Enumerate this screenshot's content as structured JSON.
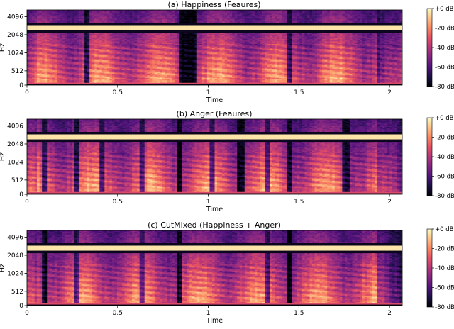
{
  "panels": [
    {
      "title": "(a) Happiness (Feaures)"
    },
    {
      "title": "(b) Anger (Feaures)"
    },
    {
      "title": "(c) CutMixed (Happiness + Anger)"
    }
  ],
  "colors": {
    "colormap": [
      "#000004",
      "#1c1044",
      "#4f127b",
      "#812581",
      "#b5367a",
      "#e55064",
      "#fb8761",
      "#fec287",
      "#fcfdbf"
    ],
    "background": "#ffffff"
  },
  "chart_data": [
    {
      "type": "heatmap",
      "title": "(a) Happiness (Feaures)",
      "xlabel": "Time",
      "ylabel": "Hz",
      "xlim": [
        0,
        2.07
      ],
      "xticks": [
        0,
        0.5,
        1,
        1.5,
        2
      ],
      "xtick_labels": [
        "0",
        "0.5",
        "1",
        "1.5",
        "2"
      ],
      "yticks": [
        0,
        512,
        1024,
        2048,
        4096
      ],
      "ytick_labels": [
        "0",
        "512",
        "1024",
        "2048",
        "4096"
      ],
      "yscale": "log-frequency",
      "colorbar": {
        "ticks": [
          0,
          -20,
          -40,
          -60,
          -80
        ],
        "labels": [
          "+0 dB",
          "-20 dB",
          "-40 dB",
          "-60 dB",
          "-80 dB"
        ],
        "range": [
          -80,
          0
        ]
      },
      "gap_columns": [
        0.33,
        0.86,
        0.89,
        0.93,
        1.45
      ],
      "harmonic_band_hz": 2860
    },
    {
      "type": "heatmap",
      "title": "(b) Anger (Feaures)",
      "xlabel": "Time",
      "ylabel": "Hz",
      "xlim": [
        0,
        2.07
      ],
      "xticks": [
        0,
        0.5,
        1,
        1.5,
        2
      ],
      "xtick_labels": [
        "0",
        "0.5",
        "1",
        "1.5",
        "2"
      ],
      "yticks": [
        0,
        512,
        1024,
        2048,
        4096
      ],
      "ytick_labels": [
        "0",
        "512",
        "1024",
        "2048",
        "4096"
      ],
      "yscale": "log-frequency",
      "colorbar": {
        "ticks": [
          0,
          -20,
          -40,
          -60,
          -80
        ],
        "labels": [
          "+0 dB",
          "-20 dB",
          "-40 dB",
          "-60 dB",
          "-80 dB"
        ],
        "range": [
          -80,
          0
        ]
      },
      "gap_columns": [
        0.1,
        0.28,
        0.41,
        0.63,
        0.84,
        1.02,
        1.18,
        1.33,
        1.45,
        1.76
      ],
      "harmonic_band_hz": 2860
    },
    {
      "type": "heatmap",
      "title": "(c) CutMixed (Happiness + Anger)",
      "xlabel": "Time",
      "ylabel": "Hz",
      "xlim": [
        0,
        2.07
      ],
      "xticks": [
        0,
        0.5,
        1,
        1.5,
        2
      ],
      "xtick_labels": [
        "0",
        "0.5",
        "1",
        "1.5",
        "2"
      ],
      "yticks": [
        0,
        512,
        1024,
        2048,
        4096
      ],
      "ytick_labels": [
        "0",
        "512",
        "1024",
        "2048",
        "4096"
      ],
      "yscale": "log-frequency",
      "colorbar": {
        "ticks": [
          0,
          -20,
          -40,
          -60,
          -80
        ],
        "labels": [
          "+0 dB",
          "-20 dB",
          "-40 dB",
          "-60 dB",
          "-80 dB"
        ],
        "range": [
          -80,
          0
        ]
      },
      "gap_columns": [
        0.1,
        0.28,
        0.63,
        0.84,
        1.33,
        1.45
      ],
      "harmonic_band_hz": 2860
    }
  ]
}
